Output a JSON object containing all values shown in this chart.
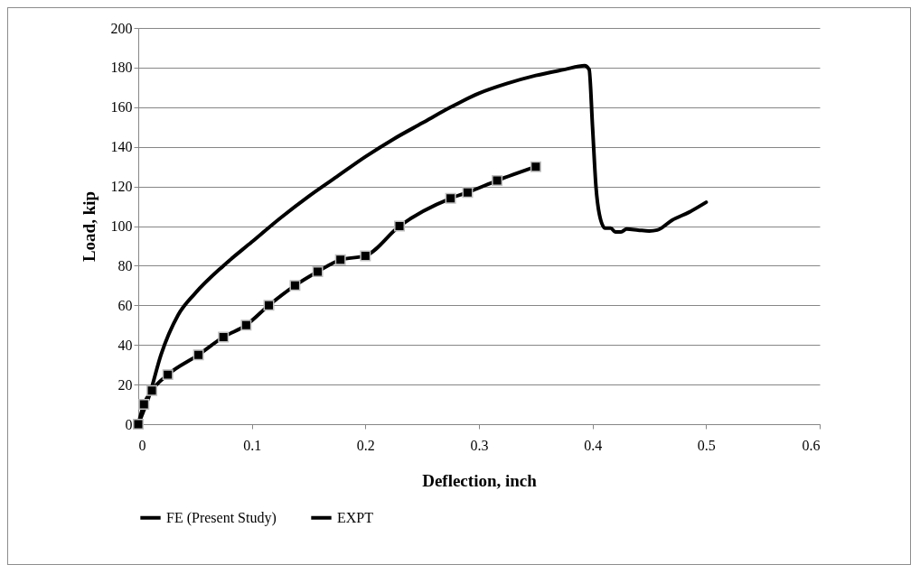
{
  "chart_data": {
    "type": "line",
    "xlabel": "Deflection, inch",
    "ylabel": "Load, kip",
    "xlim": [
      0,
      0.6
    ],
    "xticks": [
      0,
      0.1,
      0.2,
      0.3,
      0.4,
      0.5,
      0.6
    ],
    "ylim": [
      0,
      200
    ],
    "yticks": [
      0,
      20,
      40,
      60,
      80,
      100,
      120,
      140,
      160,
      180,
      200
    ],
    "grid": "y",
    "legend": "bottom",
    "line_style": "solid",
    "series": [
      {
        "name": "FE (Present Study)",
        "color": "#000000",
        "marker": "none",
        "x": [
          0,
          0.01,
          0.02,
          0.035,
          0.05,
          0.075,
          0.1,
          0.125,
          0.15,
          0.175,
          0.2,
          0.225,
          0.25,
          0.275,
          0.3,
          0.325,
          0.35,
          0.375,
          0.393,
          0.397,
          0.4,
          0.403,
          0.406,
          0.411,
          0.416,
          0.42,
          0.425,
          0.43,
          0.44,
          0.45,
          0.457,
          0.47,
          0.485,
          0.5
        ],
        "values": [
          0,
          15,
          35,
          55,
          66,
          80,
          92,
          104,
          115,
          125,
          135,
          144,
          152,
          160,
          167,
          172,
          176,
          179,
          181,
          179,
          150,
          120,
          106,
          99,
          99,
          97,
          97,
          98.5,
          98,
          97.5,
          98,
          103,
          107,
          112
        ]
      },
      {
        "name": "EXPT",
        "color": "#000000",
        "marker": "square",
        "x": [
          0,
          0.005,
          0.012,
          0.026,
          0.053,
          0.075,
          0.095,
          0.115,
          0.138,
          0.158,
          0.178,
          0.2,
          0.23,
          0.275,
          0.29,
          0.316,
          0.35
        ],
        "values": [
          0,
          10,
          17,
          25,
          35,
          44,
          50,
          60,
          70,
          77,
          83,
          85,
          100,
          114,
          117,
          123,
          130
        ]
      }
    ]
  }
}
